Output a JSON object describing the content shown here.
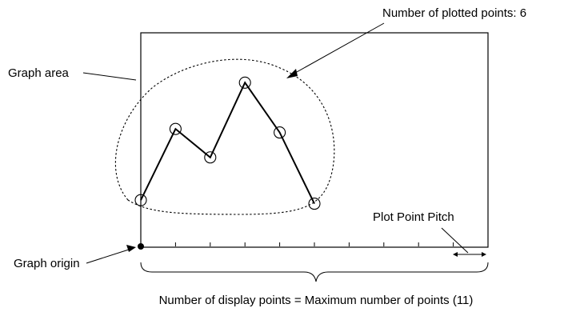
{
  "labels": {
    "plotted_points": "Number of plotted points: 6",
    "graph_area": "Graph area",
    "plot_point_pitch": "Plot Point Pitch",
    "graph_origin": "Graph origin",
    "display_points": "Number of display points = Maximum number of points (11)"
  },
  "points": {
    "max_display": 11,
    "plotted_count": 6,
    "values": [
      1.3,
      3.3,
      2.5,
      4.6,
      3.2,
      1.2
    ],
    "y_max": 6
  },
  "colors": {
    "line": "#000000",
    "background": "#ffffff"
  }
}
